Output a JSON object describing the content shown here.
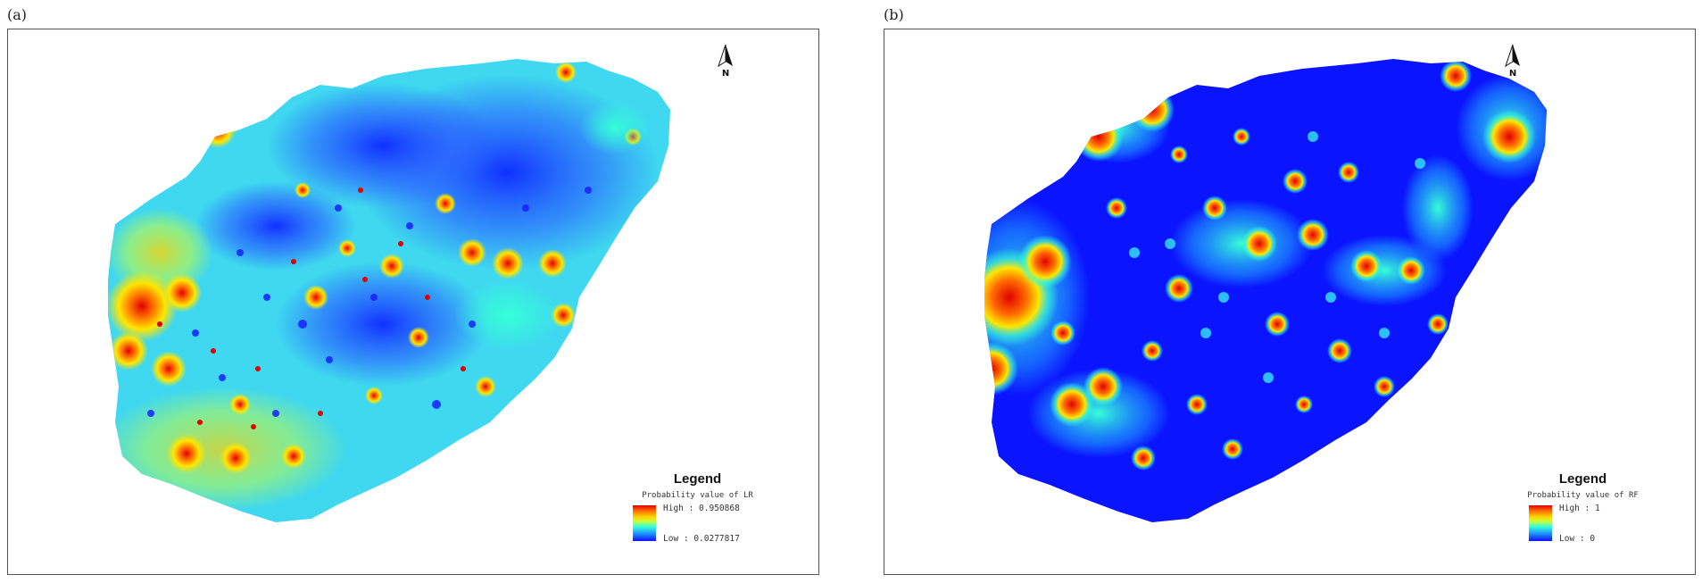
{
  "panels": [
    {
      "id": "a",
      "label": "(a)",
      "north_label": "N",
      "legend": {
        "title": "Legend",
        "subtitle": "Probability value of LR",
        "high": "High : 0.950868",
        "low": "Low   : 0.0277817"
      }
    },
    {
      "id": "b",
      "label": "(b)",
      "north_label": "N",
      "legend": {
        "title": "Legend",
        "subtitle": "Probability value of RF",
        "high": "High : 1",
        "low": "Low   : 0"
      }
    }
  ],
  "colors": {
    "high": "#e00000",
    "mid_high": "#ffd200",
    "mid": "#36ffd8",
    "mid_low": "#1e9aff",
    "low": "#1010ff"
  }
}
